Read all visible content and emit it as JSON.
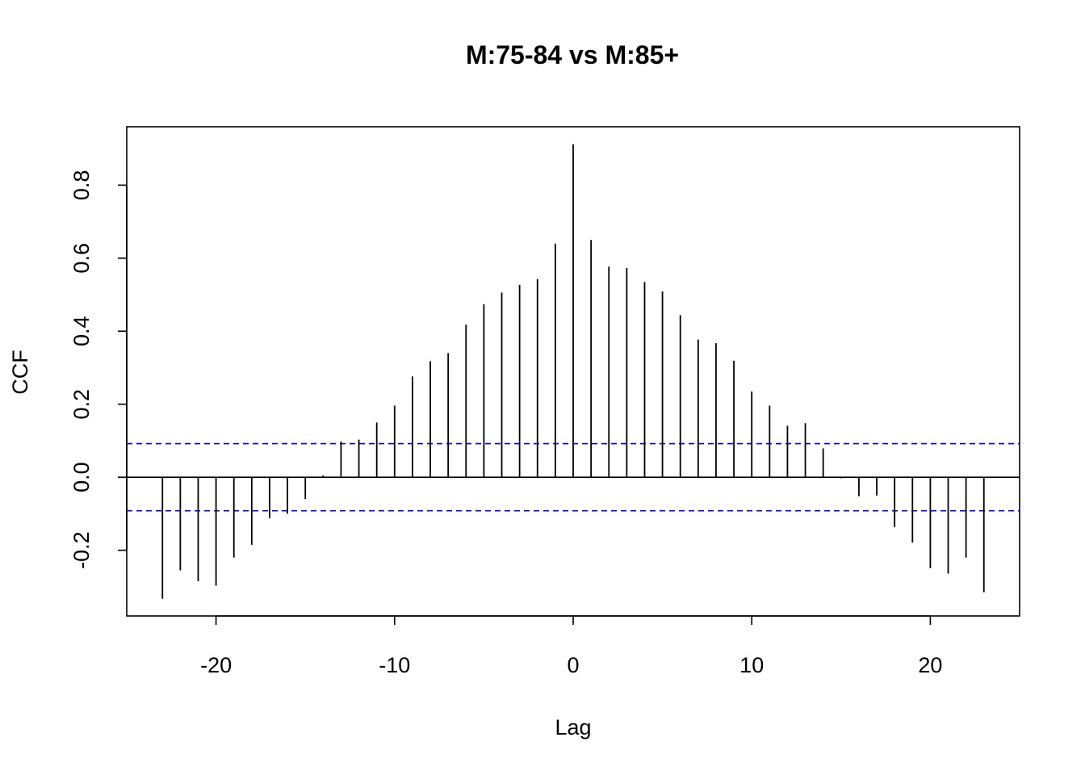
{
  "chart_data": {
    "type": "bar",
    "title": "M:75-84 vs M:85+",
    "xlabel": "Lag",
    "ylabel": "CCF",
    "xlim": [
      -25,
      25
    ],
    "ylim": [
      -0.38,
      0.96
    ],
    "x_ticks": [
      -20,
      -10,
      0,
      10,
      20
    ],
    "x_tick_labels": [
      "-20",
      "-10",
      "0",
      "10",
      "20"
    ],
    "y_ticks": [
      -0.2,
      0.0,
      0.2,
      0.4,
      0.6,
      0.8
    ],
    "y_tick_labels": [
      "-0.2",
      "0.0",
      "0.2",
      "0.4",
      "0.6",
      "0.8"
    ],
    "confidence_band": 0.092,
    "grid": false,
    "lags": [
      -23,
      -22,
      -21,
      -20,
      -19,
      -18,
      -17,
      -16,
      -15,
      -14,
      -13,
      -12,
      -11,
      -10,
      -9,
      -8,
      -7,
      -6,
      -5,
      -4,
      -3,
      -2,
      -1,
      0,
      1,
      2,
      3,
      4,
      5,
      6,
      7,
      8,
      9,
      10,
      11,
      12,
      13,
      14,
      15,
      16,
      17,
      18,
      19,
      20,
      21,
      22,
      23
    ],
    "values": [
      -0.333,
      -0.255,
      -0.285,
      -0.297,
      -0.22,
      -0.185,
      -0.112,
      -0.1,
      -0.06,
      0.005,
      0.098,
      0.103,
      0.15,
      0.196,
      0.276,
      0.318,
      0.34,
      0.418,
      0.474,
      0.506,
      0.527,
      0.543,
      0.64,
      0.912,
      0.65,
      0.577,
      0.573,
      0.535,
      0.509,
      0.444,
      0.377,
      0.367,
      0.319,
      0.235,
      0.196,
      0.141,
      0.148,
      0.079,
      -0.003,
      -0.052,
      -0.05,
      -0.137,
      -0.179,
      -0.249,
      -0.264,
      -0.22,
      -0.315
    ],
    "colors": {
      "bars": "#000000",
      "confidence_lines": "#0000CD",
      "zero_line": "#000000",
      "frame": "#000000"
    }
  }
}
